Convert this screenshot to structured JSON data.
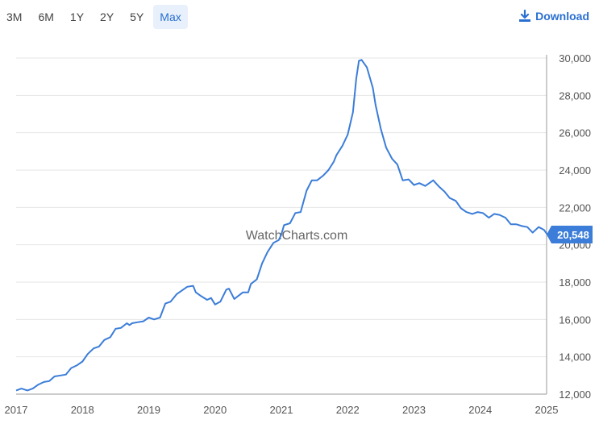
{
  "toolbar": {
    "ranges": [
      "3M",
      "6M",
      "1Y",
      "2Y",
      "5Y",
      "Max"
    ],
    "active_range": "Max",
    "download_label": "Download",
    "download_icon": "download-icon",
    "accent_color": "#2a6fd1"
  },
  "watermark": "WatchCharts.com",
  "chart_data": {
    "type": "line",
    "x_axis": {
      "range": [
        2017.0,
        2025.0
      ],
      "ticks": [
        "2017",
        "2018",
        "2019",
        "2020",
        "2021",
        "2022",
        "2023",
        "2024",
        "2025"
      ]
    },
    "y_axis": {
      "range": [
        12000,
        30000
      ],
      "position": "right",
      "ticks": [
        "12,000",
        "14,000",
        "16,000",
        "18,000",
        "20,000",
        "22,000",
        "24,000",
        "26,000",
        "28,000",
        "30,000"
      ]
    },
    "grid": {
      "horizontal": true,
      "vertical": false
    },
    "legend": "none",
    "line_color": "#3b7dd8",
    "last_value": 20548,
    "last_value_label": "20,548",
    "series": [
      {
        "points": [
          [
            2017.0,
            12200
          ],
          [
            2017.08,
            12300
          ],
          [
            2017.17,
            12200
          ],
          [
            2017.25,
            12300
          ],
          [
            2017.33,
            12500
          ],
          [
            2017.42,
            12650
          ],
          [
            2017.5,
            12700
          ],
          [
            2017.58,
            12950
          ],
          [
            2017.67,
            13000
          ],
          [
            2017.75,
            13050
          ],
          [
            2017.83,
            13400
          ],
          [
            2017.92,
            13550
          ],
          [
            2018.0,
            13750
          ],
          [
            2018.08,
            14150
          ],
          [
            2018.17,
            14450
          ],
          [
            2018.25,
            14550
          ],
          [
            2018.33,
            14900
          ],
          [
            2018.42,
            15050
          ],
          [
            2018.5,
            15500
          ],
          [
            2018.58,
            15550
          ],
          [
            2018.67,
            15800
          ],
          [
            2018.71,
            15700
          ],
          [
            2018.75,
            15800
          ],
          [
            2018.83,
            15850
          ],
          [
            2018.92,
            15900
          ],
          [
            2019.0,
            16100
          ],
          [
            2019.08,
            16000
          ],
          [
            2019.17,
            16100
          ],
          [
            2019.25,
            16850
          ],
          [
            2019.33,
            16950
          ],
          [
            2019.42,
            17350
          ],
          [
            2019.5,
            17550
          ],
          [
            2019.58,
            17750
          ],
          [
            2019.67,
            17800
          ],
          [
            2019.71,
            17450
          ],
          [
            2019.79,
            17250
          ],
          [
            2019.88,
            17050
          ],
          [
            2019.94,
            17150
          ],
          [
            2020.0,
            16800
          ],
          [
            2020.08,
            16950
          ],
          [
            2020.17,
            17600
          ],
          [
            2020.21,
            17650
          ],
          [
            2020.29,
            17100
          ],
          [
            2020.42,
            17450
          ],
          [
            2020.5,
            17450
          ],
          [
            2020.54,
            17900
          ],
          [
            2020.63,
            18150
          ],
          [
            2020.71,
            19000
          ],
          [
            2020.79,
            19600
          ],
          [
            2020.88,
            20100
          ],
          [
            2020.96,
            20250
          ],
          [
            2021.0,
            20550
          ],
          [
            2021.04,
            21050
          ],
          [
            2021.13,
            21150
          ],
          [
            2021.21,
            21700
          ],
          [
            2021.29,
            21750
          ],
          [
            2021.38,
            22900
          ],
          [
            2021.46,
            23450
          ],
          [
            2021.54,
            23450
          ],
          [
            2021.63,
            23700
          ],
          [
            2021.71,
            24000
          ],
          [
            2021.79,
            24450
          ],
          [
            2021.83,
            24800
          ],
          [
            2021.92,
            25300
          ],
          [
            2022.0,
            25900
          ],
          [
            2022.08,
            27100
          ],
          [
            2022.13,
            28900
          ],
          [
            2022.17,
            29850
          ],
          [
            2022.21,
            29900
          ],
          [
            2022.29,
            29500
          ],
          [
            2022.38,
            28400
          ],
          [
            2022.42,
            27500
          ],
          [
            2022.5,
            26200
          ],
          [
            2022.58,
            25200
          ],
          [
            2022.67,
            24600
          ],
          [
            2022.75,
            24300
          ],
          [
            2022.83,
            23450
          ],
          [
            2022.92,
            23500
          ],
          [
            2023.0,
            23200
          ],
          [
            2023.08,
            23300
          ],
          [
            2023.17,
            23150
          ],
          [
            2023.25,
            23350
          ],
          [
            2023.29,
            23450
          ],
          [
            2023.38,
            23100
          ],
          [
            2023.46,
            22850
          ],
          [
            2023.54,
            22500
          ],
          [
            2023.63,
            22350
          ],
          [
            2023.71,
            21950
          ],
          [
            2023.79,
            21750
          ],
          [
            2023.88,
            21650
          ],
          [
            2023.96,
            21750
          ],
          [
            2024.04,
            21700
          ],
          [
            2024.13,
            21450
          ],
          [
            2024.21,
            21650
          ],
          [
            2024.29,
            21600
          ],
          [
            2024.38,
            21450
          ],
          [
            2024.46,
            21100
          ],
          [
            2024.54,
            21100
          ],
          [
            2024.63,
            21000
          ],
          [
            2024.71,
            20950
          ],
          [
            2024.79,
            20650
          ],
          [
            2024.88,
            20950
          ],
          [
            2024.96,
            20800
          ],
          [
            2025.0,
            20600
          ],
          [
            2025.04,
            20548
          ]
        ]
      }
    ]
  }
}
